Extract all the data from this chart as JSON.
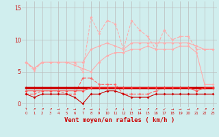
{
  "x": [
    0,
    1,
    2,
    3,
    4,
    5,
    6,
    7,
    8,
    9,
    10,
    11,
    12,
    13,
    14,
    15,
    16,
    17,
    18,
    19,
    20,
    21,
    22,
    23
  ],
  "series": [
    {
      "name": "rafales_max_upper",
      "y": [
        6.5,
        5.2,
        6.5,
        6.5,
        6.5,
        6.5,
        6.5,
        5.0,
        13.5,
        11.0,
        13.0,
        12.5,
        8.5,
        13.0,
        11.5,
        10.5,
        8.5,
        11.5,
        10.0,
        10.5,
        10.5,
        8.5,
        8.5,
        8.5
      ],
      "color": "#FFAAAA",
      "linewidth": 0.8,
      "marker": "D",
      "markersize": 2.0,
      "linestyle": "--"
    },
    {
      "name": "rafales_upper_band",
      "y": [
        6.5,
        5.5,
        6.5,
        6.5,
        6.5,
        6.5,
        6.5,
        6.5,
        8.5,
        9.0,
        9.5,
        9.0,
        8.5,
        9.5,
        9.5,
        9.5,
        9.5,
        9.5,
        9.5,
        9.5,
        9.5,
        9.0,
        8.5,
        8.5
      ],
      "color": "#FFAAAA",
      "linewidth": 0.8,
      "marker": "D",
      "markersize": 2.0,
      "linestyle": "-"
    },
    {
      "name": "rafales_lower_band",
      "y": [
        6.5,
        5.5,
        6.5,
        6.5,
        6.5,
        6.5,
        6.0,
        5.5,
        5.0,
        6.5,
        7.5,
        8.0,
        8.0,
        8.5,
        8.5,
        9.0,
        8.5,
        8.5,
        8.5,
        9.0,
        9.0,
        8.0,
        3.0,
        3.0
      ],
      "color": "#FFAAAA",
      "linewidth": 0.8,
      "marker": "D",
      "markersize": 2.0,
      "linestyle": "-"
    },
    {
      "name": "vent_dashed_upper",
      "y": [
        1.5,
        1.5,
        2.0,
        2.0,
        2.0,
        1.5,
        1.5,
        4.0,
        4.0,
        3.0,
        3.0,
        3.0,
        1.5,
        1.5,
        1.5,
        1.5,
        2.0,
        2.5,
        2.5,
        2.5,
        2.5,
        2.5,
        2.5,
        2.5
      ],
      "color": "#FF6666",
      "linewidth": 0.8,
      "marker": "D",
      "markersize": 2.0,
      "linestyle": "--"
    },
    {
      "name": "vent_solid_upper",
      "y": [
        2.5,
        2.5,
        2.5,
        2.5,
        2.5,
        2.5,
        2.5,
        2.5,
        2.5,
        2.5,
        2.5,
        2.5,
        2.5,
        2.5,
        2.5,
        2.5,
        2.5,
        2.5,
        2.5,
        2.5,
        2.5,
        2.5,
        2.5,
        2.5
      ],
      "color": "#CC0000",
      "linewidth": 2.5,
      "marker": "D",
      "markersize": 2.0,
      "linestyle": "-"
    },
    {
      "name": "vent_solid_mid",
      "y": [
        2.0,
        2.0,
        2.0,
        2.0,
        2.0,
        2.0,
        2.0,
        2.0,
        2.5,
        2.5,
        2.5,
        2.5,
        2.5,
        2.5,
        2.5,
        2.5,
        2.5,
        2.5,
        2.5,
        2.5,
        2.5,
        2.0,
        2.5,
        2.5
      ],
      "color": "#FF4444",
      "linewidth": 0.8,
      "marker": "D",
      "markersize": 2.0,
      "linestyle": "-"
    },
    {
      "name": "vent_solid_lower",
      "y": [
        1.5,
        1.0,
        1.5,
        1.5,
        1.5,
        1.5,
        1.0,
        0.0,
        1.5,
        1.5,
        2.0,
        2.0,
        1.5,
        1.0,
        1.0,
        1.0,
        1.5,
        1.5,
        1.5,
        1.5,
        1.5,
        1.5,
        1.5,
        1.5
      ],
      "color": "#CC0000",
      "linewidth": 0.8,
      "marker": "D",
      "markersize": 2.0,
      "linestyle": "-"
    }
  ],
  "xlabel": "Vent moyen/en rafales ( km/h )",
  "yticks": [
    0,
    5,
    10,
    15
  ],
  "xlim": [
    -0.5,
    23.5
  ],
  "ylim": [
    -0.5,
    16.0
  ],
  "bg_color": "#D0EEEE",
  "grid_color": "#BBBBBB",
  "tick_color": "#CC0000",
  "label_color": "#CC0000",
  "xlabel_fontsize": 6.5,
  "arrows": [
    "↑",
    "↗",
    "↗",
    "↗",
    "→",
    "↗",
    "→",
    "↗",
    "→",
    "↓",
    "↓",
    "↗",
    "↓",
    "↓",
    "→",
    "↗",
    "↗",
    "↙",
    "→",
    "→",
    "→",
    "↗",
    "↗",
    "↗"
  ]
}
